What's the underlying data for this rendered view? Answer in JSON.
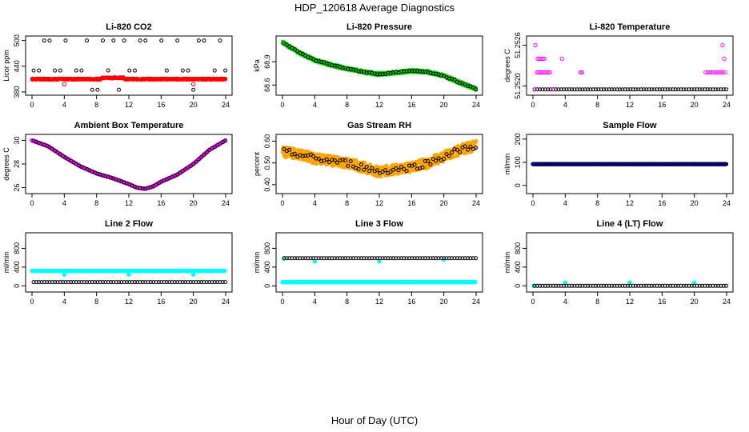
{
  "page": {
    "title": "HDP_120618  Average Diagnostics",
    "xlabel": "Hour of Day (UTC)"
  },
  "chart_data": [
    {
      "type": "scatter",
      "title": "Li-820 CO2",
      "ylabel": "Licor ppm",
      "xlabel": "",
      "xlim": [
        0,
        24
      ],
      "ylim": [
        378,
        505
      ],
      "xticks": [
        0,
        4,
        8,
        12,
        16,
        20,
        24
      ],
      "yticks": [
        380,
        440,
        500
      ],
      "yticklabels": [
        "380",
        "440",
        "500"
      ],
      "series": [
        {
          "color": "#000000",
          "filled": false,
          "pattern": "co2-high",
          "levels": [
            385,
            430,
            500
          ]
        },
        {
          "color": "#ff0000",
          "filled": true,
          "pattern": "band",
          "center": 410,
          "width": 4,
          "bump": [
            10,
            3
          ]
        },
        {
          "color": "#ff0000",
          "filled": false,
          "pattern": "points",
          "points": [
            [
              4,
              398
            ],
            [
              20,
              398
            ]
          ]
        }
      ]
    },
    {
      "type": "scatter",
      "title": "Li-820 Pressure",
      "ylabel": "kPa",
      "xlabel": "",
      "xlim": [
        0,
        24
      ],
      "ylim": [
        68.5,
        69.2
      ],
      "xticks": [
        0,
        4,
        8,
        12,
        16,
        20,
        24
      ],
      "yticks": [
        68.6,
        68.9
      ],
      "yticklabels": [
        "68.6",
        "68.9"
      ],
      "series": [
        {
          "color": "#00dd00",
          "filled": true,
          "pattern": "band",
          "curve": [
            [
              0,
              69.15
            ],
            [
              2,
              69.02
            ],
            [
              4,
              68.92
            ],
            [
              6,
              68.86
            ],
            [
              8,
              68.81
            ],
            [
              10,
              68.77
            ],
            [
              12,
              68.74
            ],
            [
              14,
              68.76
            ],
            [
              16,
              68.78
            ],
            [
              18,
              68.77
            ],
            [
              20,
              68.72
            ],
            [
              22,
              68.63
            ],
            [
              24,
              68.55
            ]
          ],
          "width": 0.04
        },
        {
          "color": "#000000",
          "filled": false,
          "pattern": "curve-points",
          "curve": [
            [
              0,
              69.15
            ],
            [
              2,
              69.02
            ],
            [
              4,
              68.92
            ],
            [
              6,
              68.86
            ],
            [
              8,
              68.81
            ],
            [
              10,
              68.77
            ],
            [
              12,
              68.74
            ],
            [
              14,
              68.76
            ],
            [
              16,
              68.78
            ],
            [
              18,
              68.77
            ],
            [
              20,
              68.72
            ],
            [
              22,
              68.63
            ],
            [
              24,
              68.55
            ]
          ],
          "jitter": 0.015
        }
      ]
    },
    {
      "type": "scatter",
      "title": "Li-820 Temperature",
      "ylabel": "degrees C",
      "xlabel": "",
      "xlim": [
        0,
        24
      ],
      "ylim": [
        51.2519,
        51.2527
      ],
      "xticks": [
        0,
        4,
        8,
        12,
        16,
        20,
        24
      ],
      "yticks": [
        51.252,
        51.2526
      ],
      "yticklabels": [
        "51.2520",
        "51.2526"
      ],
      "series": [
        {
          "color": "#000000",
          "filled": false,
          "pattern": "flat",
          "y": 51.25195
        },
        {
          "color": "#ff00ff",
          "filled": false,
          "pattern": "points",
          "points": [
            [
              0.3,
              51.2526
            ],
            [
              0.6,
              51.2524
            ],
            [
              0.8,
              51.2524
            ],
            [
              1.0,
              51.2524
            ],
            [
              1.2,
              51.2524
            ],
            [
              1.4,
              51.2524
            ],
            [
              0.5,
              51.2522
            ],
            [
              0.7,
              51.2522
            ],
            [
              0.9,
              51.2522
            ],
            [
              1.1,
              51.2522
            ],
            [
              1.3,
              51.2522
            ],
            [
              1.5,
              51.2522
            ],
            [
              1.7,
              51.2522
            ],
            [
              1.9,
              51.2522
            ],
            [
              2.1,
              51.2522
            ],
            [
              3.6,
              51.2524
            ],
            [
              5.9,
              51.2522
            ],
            [
              6.1,
              51.2522
            ],
            [
              21.4,
              51.2522
            ],
            [
              21.7,
              51.2522
            ],
            [
              22.0,
              51.2522
            ],
            [
              22.3,
              51.2522
            ],
            [
              22.6,
              51.2522
            ],
            [
              22.9,
              51.2522
            ],
            [
              23.2,
              51.2522
            ],
            [
              23.5,
              51.2522
            ],
            [
              23.8,
              51.2522
            ],
            [
              23.5,
              51.2526
            ],
            [
              23.7,
              51.2524
            ],
            [
              2.5,
              51.25195
            ],
            [
              0.2,
              51.25195
            ]
          ]
        }
      ]
    },
    {
      "type": "scatter",
      "title": "Ambient Box Temperature",
      "ylabel": "degrees C",
      "xlabel": "",
      "xlim": [
        0,
        24
      ],
      "ylim": [
        25.7,
        30.3
      ],
      "xticks": [
        0,
        4,
        8,
        12,
        16,
        20,
        24
      ],
      "yticks": [
        26,
        28,
        30
      ],
      "yticklabels": [
        "26",
        "28",
        "30"
      ],
      "series": [
        {
          "color": "#ff00ff",
          "filled": true,
          "pattern": "curve-dense",
          "curve": [
            [
              0,
              30.0
            ],
            [
              2,
              29.5
            ],
            [
              4,
              28.6
            ],
            [
              6,
              27.8
            ],
            [
              8,
              27.2
            ],
            [
              10,
              26.8
            ],
            [
              12,
              26.3
            ],
            [
              13,
              26.0
            ],
            [
              14,
              25.9
            ],
            [
              15,
              26.1
            ],
            [
              16,
              26.5
            ],
            [
              18,
              27.1
            ],
            [
              20,
              28.0
            ],
            [
              22,
              29.2
            ],
            [
              24,
              30.0
            ]
          ]
        },
        {
          "color": "#000000",
          "filled": false,
          "pattern": "curve-points",
          "curve": [
            [
              0,
              30.0
            ],
            [
              2,
              29.5
            ],
            [
              4,
              28.6
            ],
            [
              6,
              27.8
            ],
            [
              8,
              27.2
            ],
            [
              10,
              26.8
            ],
            [
              12,
              26.3
            ],
            [
              13,
              26.0
            ],
            [
              14,
              25.9
            ],
            [
              15,
              26.1
            ],
            [
              16,
              26.5
            ],
            [
              18,
              27.1
            ],
            [
              20,
              28.0
            ],
            [
              22,
              29.2
            ],
            [
              24,
              30.0
            ]
          ],
          "jitter": 0
        }
      ]
    },
    {
      "type": "scatter",
      "title": "Gas Stream RH",
      "ylabel": "percent",
      "xlabel": "",
      "xlim": [
        0,
        24
      ],
      "ylim": [
        0.37,
        0.62
      ],
      "xticks": [
        0,
        4,
        8,
        12,
        16,
        20,
        24
      ],
      "yticks": [
        0.4,
        0.5,
        0.6
      ],
      "yticklabels": [
        "0.40",
        "0.50",
        "0.60"
      ],
      "series": [
        {
          "color": "#ffa500",
          "filled": true,
          "pattern": "band",
          "curve": [
            [
              0,
              0.55
            ],
            [
              2,
              0.54
            ],
            [
              4,
              0.52
            ],
            [
              6,
              0.51
            ],
            [
              8,
              0.5
            ],
            [
              10,
              0.48
            ],
            [
              12,
              0.46
            ],
            [
              14,
              0.47
            ],
            [
              16,
              0.48
            ],
            [
              18,
              0.5
            ],
            [
              20,
              0.53
            ],
            [
              22,
              0.56
            ],
            [
              24,
              0.58
            ]
          ],
          "width": 0.05
        },
        {
          "color": "#000000",
          "filled": false,
          "pattern": "curve-points",
          "curve": [
            [
              0,
              0.55
            ],
            [
              2,
              0.54
            ],
            [
              4,
              0.52
            ],
            [
              6,
              0.51
            ],
            [
              8,
              0.5
            ],
            [
              10,
              0.48
            ],
            [
              12,
              0.46
            ],
            [
              14,
              0.47
            ],
            [
              16,
              0.48
            ],
            [
              18,
              0.5
            ],
            [
              20,
              0.53
            ],
            [
              22,
              0.56
            ],
            [
              24,
              0.58
            ]
          ],
          "jitter": 0.03
        }
      ]
    },
    {
      "type": "scatter",
      "title": "Sample Flow",
      "ylabel": "ml/min",
      "xlabel": "",
      "xlim": [
        0,
        24
      ],
      "ylim": [
        -25,
        210
      ],
      "xticks": [
        0,
        4,
        8,
        12,
        16,
        20,
        24
      ],
      "yticks": [
        0,
        100,
        200
      ],
      "yticklabels": [
        "0",
        "100",
        "200"
      ],
      "series": [
        {
          "color": "#0000cc",
          "filled": true,
          "pattern": "flat-dense",
          "y": 92
        },
        {
          "color": "#000000",
          "filled": false,
          "pattern": "flat",
          "y": 92
        }
      ]
    },
    {
      "type": "scatter",
      "title": "Line 2 Flow",
      "ylabel": "ml/min",
      "xlabel": "",
      "xlim": [
        0,
        24
      ],
      "ylim": [
        -80,
        1080
      ],
      "xticks": [
        0,
        4,
        8,
        12,
        16,
        20,
        24
      ],
      "yticks": [
        0,
        400,
        800
      ],
      "yticklabels": [
        "0",
        "400",
        "800"
      ],
      "series": [
        {
          "color": "#00ffff",
          "filled": true,
          "pattern": "flat-dense",
          "y": 320
        },
        {
          "color": "#00ffff",
          "filled": true,
          "pattern": "points",
          "points": [
            [
              4,
              240
            ],
            [
              12,
              240
            ],
            [
              20,
              240
            ]
          ]
        },
        {
          "color": "#000000",
          "filled": false,
          "pattern": "flat",
          "y": 80
        }
      ]
    },
    {
      "type": "scatter",
      "title": "Line 3 Flow",
      "ylabel": "ml/min",
      "xlabel": "",
      "xlim": [
        0,
        24
      ],
      "ylim": [
        -80,
        1080
      ],
      "xticks": [
        0,
        4,
        8,
        12,
        16,
        20,
        24
      ],
      "yticks": [
        0,
        400,
        800
      ],
      "yticklabels": [
        "0",
        "400",
        "800"
      ],
      "series": [
        {
          "color": "#00ffff",
          "filled": true,
          "pattern": "flat-dense",
          "y": 80
        },
        {
          "color": "#00ffff",
          "filled": true,
          "pattern": "points",
          "points": [
            [
              0.2,
              580
            ],
            [
              4,
              520
            ],
            [
              12,
              520
            ],
            [
              20,
              560
            ]
          ]
        },
        {
          "color": "#000000",
          "filled": false,
          "pattern": "flat",
          "y": 590
        }
      ]
    },
    {
      "type": "scatter",
      "title": "Line 4 (LT) Flow",
      "ylabel": "ml/min",
      "xlabel": "",
      "xlim": [
        0,
        24
      ],
      "ylim": [
        -80,
        1080
      ],
      "xticks": [
        0,
        4,
        8,
        12,
        16,
        20,
        24
      ],
      "yticks": [
        0,
        400,
        800
      ],
      "yticklabels": [
        "0",
        "400",
        "800"
      ],
      "series": [
        {
          "color": "#00ffff",
          "filled": true,
          "pattern": "points",
          "points": [
            [
              0.1,
              0
            ],
            [
              4,
              70
            ],
            [
              12,
              70
            ],
            [
              20,
              70
            ]
          ]
        },
        {
          "color": "#000000",
          "filled": false,
          "pattern": "flat",
          "y": 0
        }
      ]
    }
  ]
}
